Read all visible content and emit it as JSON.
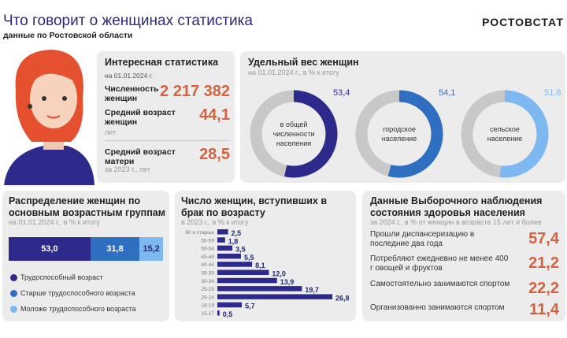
{
  "header": {
    "title": "Что говорит о женщинах статистика",
    "subtitle": "данные по Ростовской области",
    "logo": "РОСТОВСТАТ"
  },
  "stats": {
    "title": "Интересная статистика",
    "date": "на 01.01.2024 г.",
    "items": [
      {
        "label": "Численность женщин",
        "value": "2 217 382",
        "note": ""
      },
      {
        "label": "Средний возраст женщин",
        "value": "44,1",
        "note": "лет"
      },
      {
        "label": "Средний возраст матери",
        "value": "28,5",
        "note": "за 2023 г., лет"
      }
    ]
  },
  "share": {
    "title": "Удельный вес женщин",
    "subtitle": "на 01.01.2024 г., в % к итогу",
    "donuts": [
      {
        "label": "в общей численности населения",
        "value": 53.4,
        "text": "53,4",
        "color": "#2e2a8c"
      },
      {
        "label": "городское население",
        "value": 54.1,
        "text": "54,1",
        "color": "#2f6fc2"
      },
      {
        "label": "сельское население",
        "value": 51.8,
        "text": "51,8",
        "color": "#7db8f0"
      }
    ]
  },
  "age": {
    "title": "Распределение женщин по основным возрастным группам",
    "subtitle": "на 01.01.2024 г., в % к итогу",
    "segments": [
      {
        "label": "Трудоспособный возраст",
        "value": 53.0,
        "text": "53,0",
        "color": "#2e2a8c"
      },
      {
        "label": "Старше трудоспособного возраста",
        "value": 31.8,
        "text": "31,8",
        "color": "#2f6fc2"
      },
      {
        "label": "Моложе трудоспособного возраста",
        "value": 15.2,
        "text": "15,2",
        "color": "#7db8f0"
      }
    ]
  },
  "chart_data": {
    "type": "bar",
    "title": "Число женщин, вступивших в брак по возрасту",
    "subtitle": "в 2023 г., в % к итогу",
    "categories": [
      "60 и старше",
      "55-59",
      "50-54",
      "45-49",
      "40-44",
      "35-39",
      "30-34",
      "25-29",
      "20-24",
      "18-19",
      "15-17"
    ],
    "values": [
      2.5,
      1.8,
      3.5,
      5.5,
      8.1,
      12.0,
      13.9,
      19.7,
      26.8,
      5.7,
      0.5
    ],
    "labels": [
      "2,5",
      "1,8",
      "3,5",
      "5,5",
      "8,1",
      "12,0",
      "13,9",
      "19,7",
      "26,8",
      "5,7",
      "0,5"
    ],
    "color": "#2e2a8c"
  },
  "health": {
    "title": "Данные Выборочного наблюдения состояния здоровья населения",
    "subtitle": "за 2024 г., в % от женщин  в возрасте 15 лет и более",
    "items": [
      {
        "label": "Прошли диспансеризацию в последние два года",
        "value": "57,4"
      },
      {
        "label": "Потребляют ежедневно не менее 400 г овощей и фруктов",
        "value": "21,2"
      },
      {
        "label": "Самостоятельно занимаются спортом",
        "value": "22,2"
      },
      {
        "label": "Организованно занимаются спортом",
        "value": "11,4"
      }
    ]
  },
  "colors": {
    "accent": "#d4623e",
    "card": "#ececec",
    "ring": "#c8c8c8"
  }
}
